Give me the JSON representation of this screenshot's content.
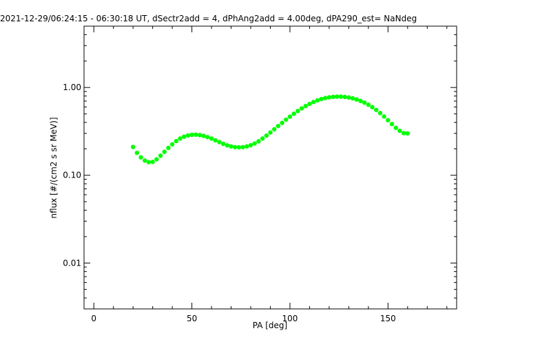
{
  "chart_data": {
    "type": "scatter",
    "title": "2021-12-29/06:24:15 - 06:30:18 UT, dSectr2add = 4, dPhAng2add = 4.00deg, dPA290_est=    NaNdeg",
    "xlabel": "PA [deg]",
    "ylabel": "nflux [#/(cm2 s sr MeV)]",
    "xlim": [
      -5,
      185
    ],
    "ylim": [
      0.003,
      5
    ],
    "yscale": "log",
    "xticks": [
      0,
      50,
      100,
      150
    ],
    "xtick_labels": [
      "0",
      "50",
      "100",
      "150"
    ],
    "yticks": [
      0.01,
      0.1,
      1.0
    ],
    "ytick_labels": [
      "0.01",
      "0.10",
      "1.00"
    ],
    "grid": false,
    "series": [
      {
        "color": "#00ff00",
        "x": [
          20,
          22,
          24,
          26,
          28,
          30,
          32,
          34,
          36,
          38,
          40,
          42,
          44,
          46,
          48,
          50,
          52,
          54,
          56,
          58,
          60,
          62,
          64,
          66,
          68,
          70,
          72,
          74,
          76,
          78,
          80,
          82,
          84,
          86,
          88,
          90,
          92,
          94,
          96,
          98,
          100,
          102,
          104,
          106,
          108,
          110,
          112,
          114,
          116,
          118,
          120,
          122,
          124,
          126,
          128,
          130,
          132,
          134,
          136,
          138,
          140,
          142,
          144,
          146,
          148,
          150,
          152,
          154,
          156,
          158,
          160
        ],
        "y": [
          0.21,
          0.18,
          0.16,
          0.147,
          0.141,
          0.142,
          0.152,
          0.167,
          0.185,
          0.205,
          0.225,
          0.245,
          0.262,
          0.275,
          0.284,
          0.289,
          0.29,
          0.287,
          0.281,
          0.272,
          0.262,
          0.25,
          0.239,
          0.228,
          0.219,
          0.213,
          0.209,
          0.208,
          0.209,
          0.213,
          0.22,
          0.23,
          0.244,
          0.262,
          0.283,
          0.307,
          0.334,
          0.364,
          0.395,
          0.43,
          0.465,
          0.502,
          0.54,
          0.578,
          0.615,
          0.65,
          0.683,
          0.713,
          0.738,
          0.758,
          0.773,
          0.782,
          0.787,
          0.786,
          0.78,
          0.769,
          0.752,
          0.73,
          0.703,
          0.672,
          0.636,
          0.597,
          0.555,
          0.511,
          0.467,
          0.424,
          0.383,
          0.347,
          0.321,
          0.302,
          0.3
        ]
      }
    ]
  }
}
